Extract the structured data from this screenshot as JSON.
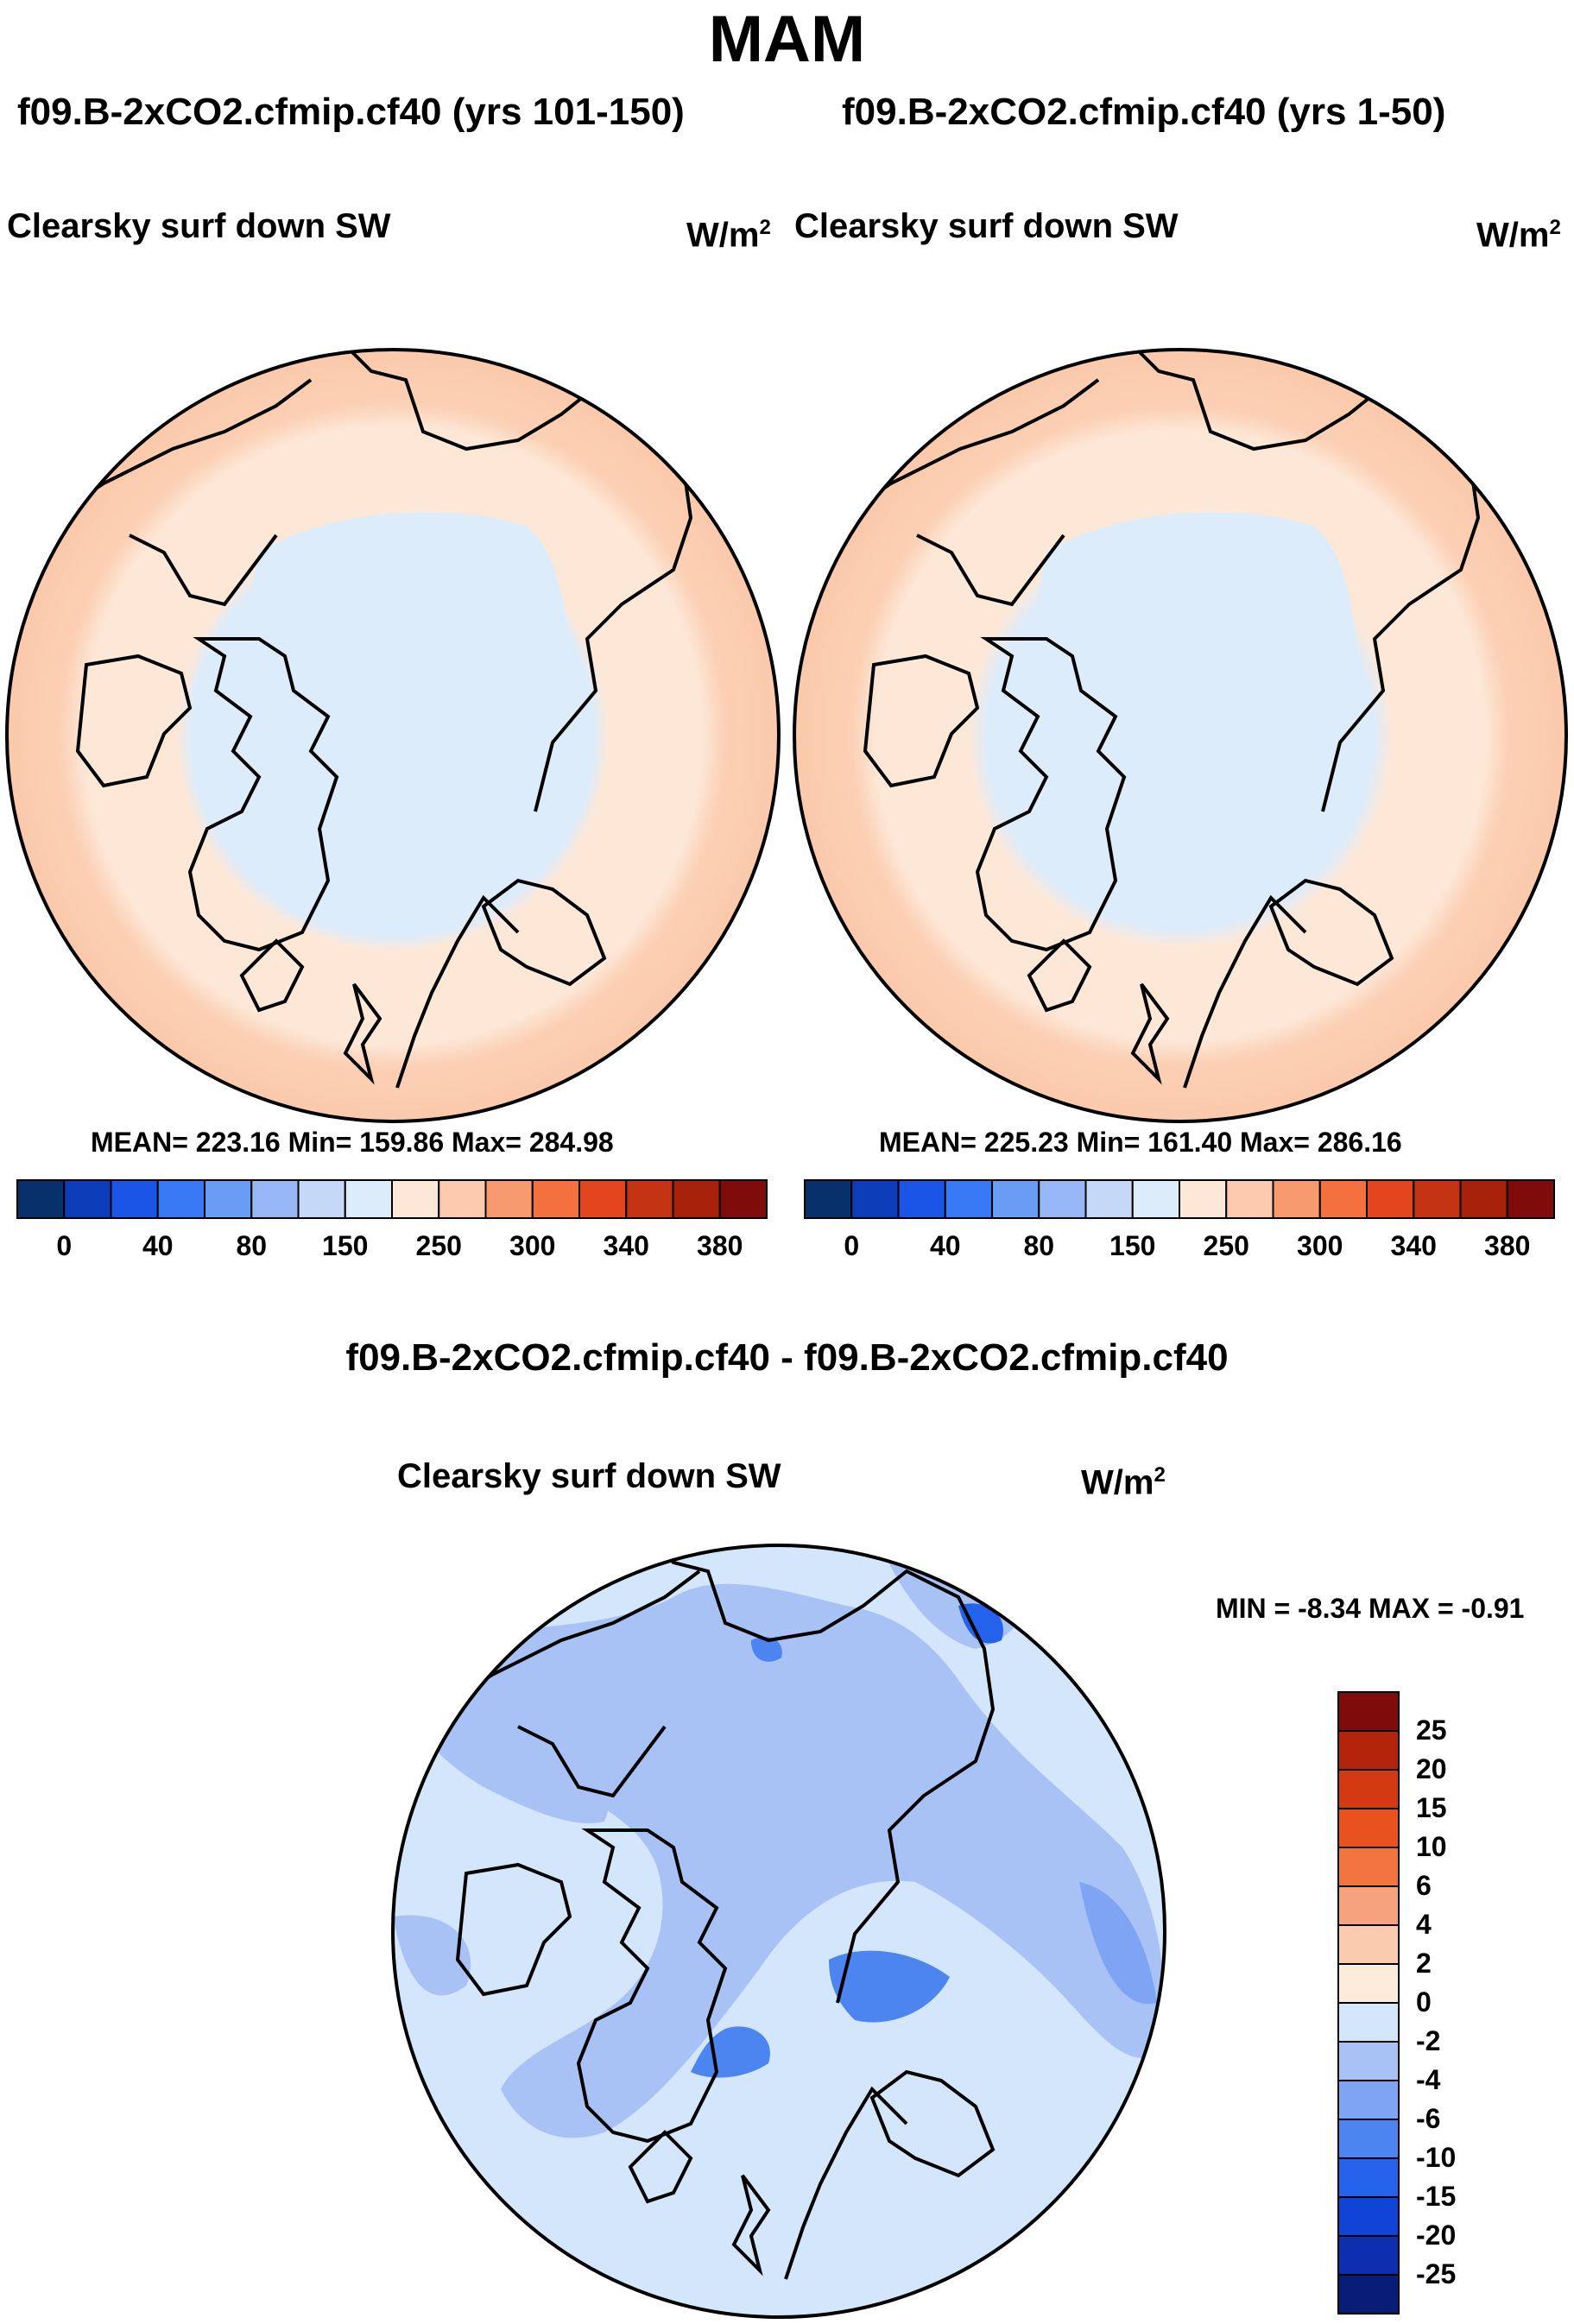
{
  "figure": {
    "title": "MAM",
    "units": "W/m",
    "units_exp": "2",
    "colors": {
      "abs": [
        "#08306b",
        "#0d3cb8",
        "#1a55e6",
        "#3778f5",
        "#6a9bf5",
        "#96b6f5",
        "#c6d8f8",
        "#dcecfb",
        "#fde8d8",
        "#fccbad",
        "#f89a70",
        "#f4703f",
        "#e3461f",
        "#c33212",
        "#a6200a",
        "#7f0b0b"
      ],
      "diff": [
        "#081d78",
        "#0b2fae",
        "#1044d6",
        "#2562eb",
        "#4c84f0",
        "#7fa4f3",
        "#a8c2f6",
        "#d4e6fb",
        "#fdebdc",
        "#fbcbb0",
        "#f6a27c",
        "#f2743f",
        "#e9511f",
        "#d43a12",
        "#b3240b",
        "#7f0b0b"
      ]
    }
  },
  "chart_data": [
    {
      "type": "heatmap",
      "projection": "north-polar-stereographic",
      "title": "f09.B-2xCO2.cfmip.cf40 (yrs 101-150)",
      "variable": "Clearsky surf down SW",
      "units": "W/m2",
      "stats": {
        "mean": "223.16",
        "min": "159.86",
        "max": "284.98"
      },
      "stats_label": "MEAN= 223.16  Min= 159.86  Max= 284.98",
      "colorbar": {
        "orientation": "horizontal",
        "tick_labels": [
          "0",
          "40",
          "80",
          "150",
          "250",
          "300",
          "340",
          "380"
        ]
      }
    },
    {
      "type": "heatmap",
      "projection": "north-polar-stereographic",
      "title": "f09.B-2xCO2.cfmip.cf40 (yrs 1-50)",
      "variable": "Clearsky surf down SW",
      "units": "W/m2",
      "stats": {
        "mean": "225.23",
        "min": "161.40",
        "max": "286.16"
      },
      "stats_label": "MEAN= 225.23  Min= 161.40  Max= 286.16",
      "colorbar": {
        "orientation": "horizontal",
        "tick_labels": [
          "0",
          "40",
          "80",
          "150",
          "250",
          "300",
          "340",
          "380"
        ]
      }
    },
    {
      "type": "heatmap",
      "projection": "north-polar-stereographic",
      "title": "f09.B-2xCO2.cfmip.cf40 - f09.B-2xCO2.cfmip.cf40",
      "variable": "Clearsky surf down SW",
      "units": "W/m2",
      "stats": {
        "min": "-8.34",
        "max": "-0.91"
      },
      "stats_label": "MIN =  -8.34 MAX =  -0.91",
      "colorbar": {
        "orientation": "vertical",
        "tick_labels": [
          "25",
          "20",
          "15",
          "10",
          "6",
          "4",
          "2",
          "0",
          "-2",
          "-4",
          "-6",
          "-10",
          "-15",
          "-20",
          "-25"
        ]
      }
    }
  ]
}
